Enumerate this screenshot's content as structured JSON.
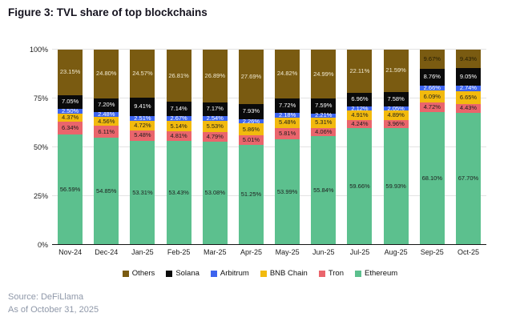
{
  "title": "Figure 3: TVL share of top blockchains",
  "source": {
    "line1": "Source: DeFiLlama",
    "line2": "As of October 31, 2025"
  },
  "chart_data": {
    "type": "bar",
    "stacked": true,
    "title": "Figure 3: TVL share of top blockchains",
    "xlabel": "",
    "ylabel": "",
    "ylim": [
      0,
      100
    ],
    "y_ticks": [
      "0%",
      "25%",
      "50%",
      "75%",
      "100%"
    ],
    "grid": true,
    "legend_position": "bottom",
    "legend": [
      "Others",
      "Solana",
      "Arbitrum",
      "BNB Chain",
      "Tron",
      "Ethereum"
    ],
    "categories": [
      "Nov-24",
      "Dec-24",
      "Jan-25",
      "Feb-25",
      "Mar-25",
      "Apr-25",
      "May-25",
      "Jun-25",
      "Jul-25",
      "Aug-25",
      "Sep-25",
      "Oct-25"
    ],
    "value_suffix": "%",
    "series": [
      {
        "name": "Ethereum",
        "color": "#5cc08e",
        "label_color": "#1d1d1d",
        "values": [
          56.59,
          54.85,
          53.31,
          53.43,
          53.08,
          51.25,
          53.99,
          55.84,
          59.66,
          59.93,
          68.1,
          67.7
        ]
      },
      {
        "name": "Tron",
        "color": "#ea656c",
        "label_color": "#1d1d1d",
        "values": [
          6.34,
          6.11,
          5.48,
          4.81,
          4.79,
          5.01,
          5.81,
          4.06,
          4.24,
          3.96,
          4.72,
          4.43
        ]
      },
      {
        "name": "BNB Chain",
        "color": "#f2ba0e",
        "label_color": "#1d1d1d",
        "values": [
          4.37,
          4.56,
          4.72,
          5.14,
          5.53,
          5.86,
          5.48,
          5.31,
          4.91,
          4.89,
          6.09,
          6.65
        ]
      },
      {
        "name": "Arbitrum",
        "color": "#3d64ee",
        "label_color": "#ffffff",
        "values": [
          2.5,
          2.48,
          2.51,
          2.67,
          2.54,
          2.26,
          2.18,
          2.21,
          2.12,
          2.05,
          2.66,
          2.74
        ]
      },
      {
        "name": "Solana",
        "color": "#0a0a0a",
        "label_color": "#ffffff",
        "values": [
          7.05,
          7.2,
          9.41,
          7.14,
          7.17,
          7.93,
          7.72,
          7.59,
          6.96,
          7.58,
          8.76,
          9.05
        ]
      },
      {
        "name": "Others",
        "color": "#7a5b11",
        "label_color": "#f1ead1",
        "label_color_overrides": {
          "Sep-25": "#241d04",
          "Oct-25": "#241d04"
        },
        "values": [
          23.15,
          24.8,
          24.57,
          26.81,
          26.89,
          27.69,
          24.82,
          24.99,
          22.11,
          21.59,
          9.67,
          9.43
        ]
      }
    ]
  }
}
